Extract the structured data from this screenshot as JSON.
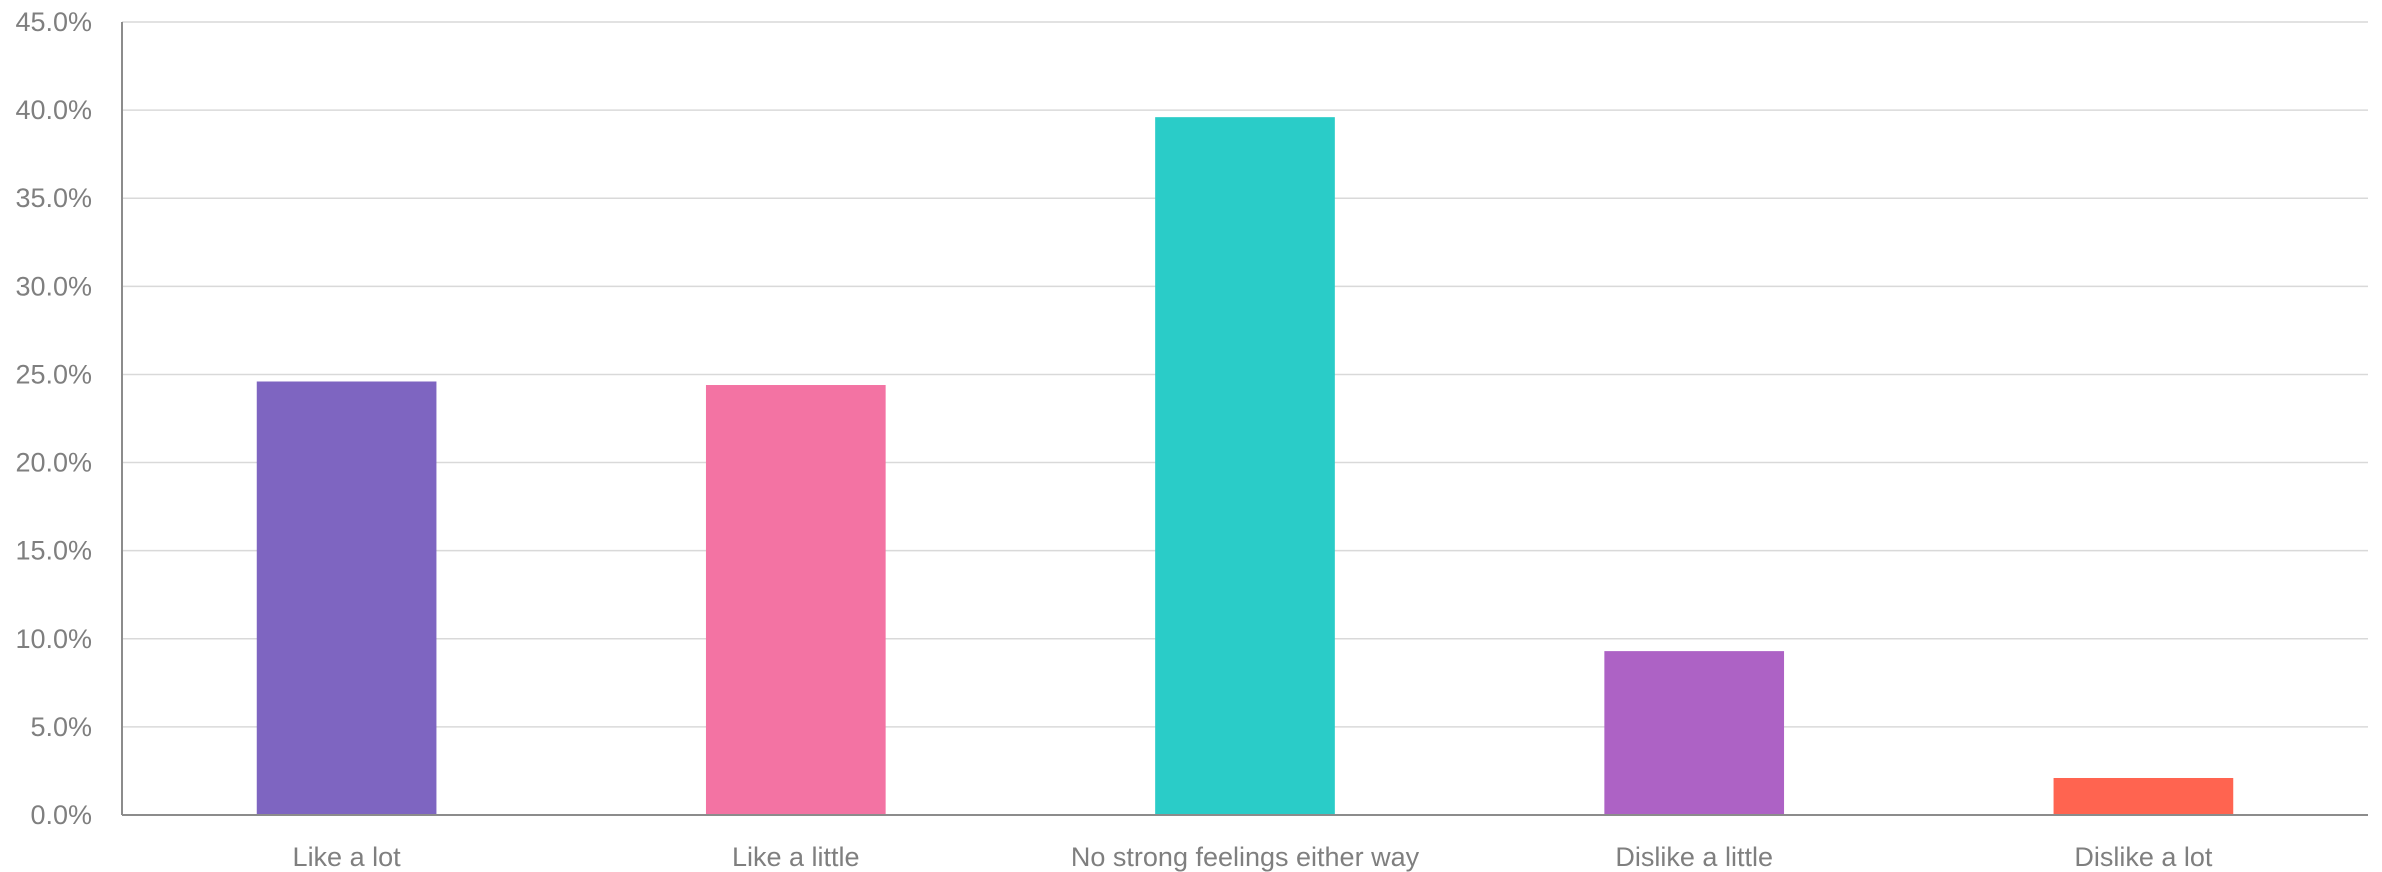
{
  "chart_data": {
    "type": "bar",
    "categories": [
      "Like a lot",
      "Like a little",
      "No strong feelings either way",
      "Dislike a little",
      "Dislike a lot"
    ],
    "values": [
      24.6,
      24.4,
      39.6,
      9.3,
      2.1
    ],
    "colors": [
      "#7e65c1",
      "#f373a3",
      "#2accc8",
      "#ad62c5",
      "#ff6450"
    ],
    "title": "",
    "xlabel": "",
    "ylabel": "",
    "ylim": [
      0,
      45
    ],
    "ytick_step": 5,
    "ytick_labels": [
      "0.0%",
      "5.0%",
      "10.0%",
      "15.0%",
      "20.0%",
      "25.0%",
      "30.0%",
      "35.0%",
      "40.0%",
      "45.0%"
    ],
    "grid": true,
    "legend": "none"
  }
}
